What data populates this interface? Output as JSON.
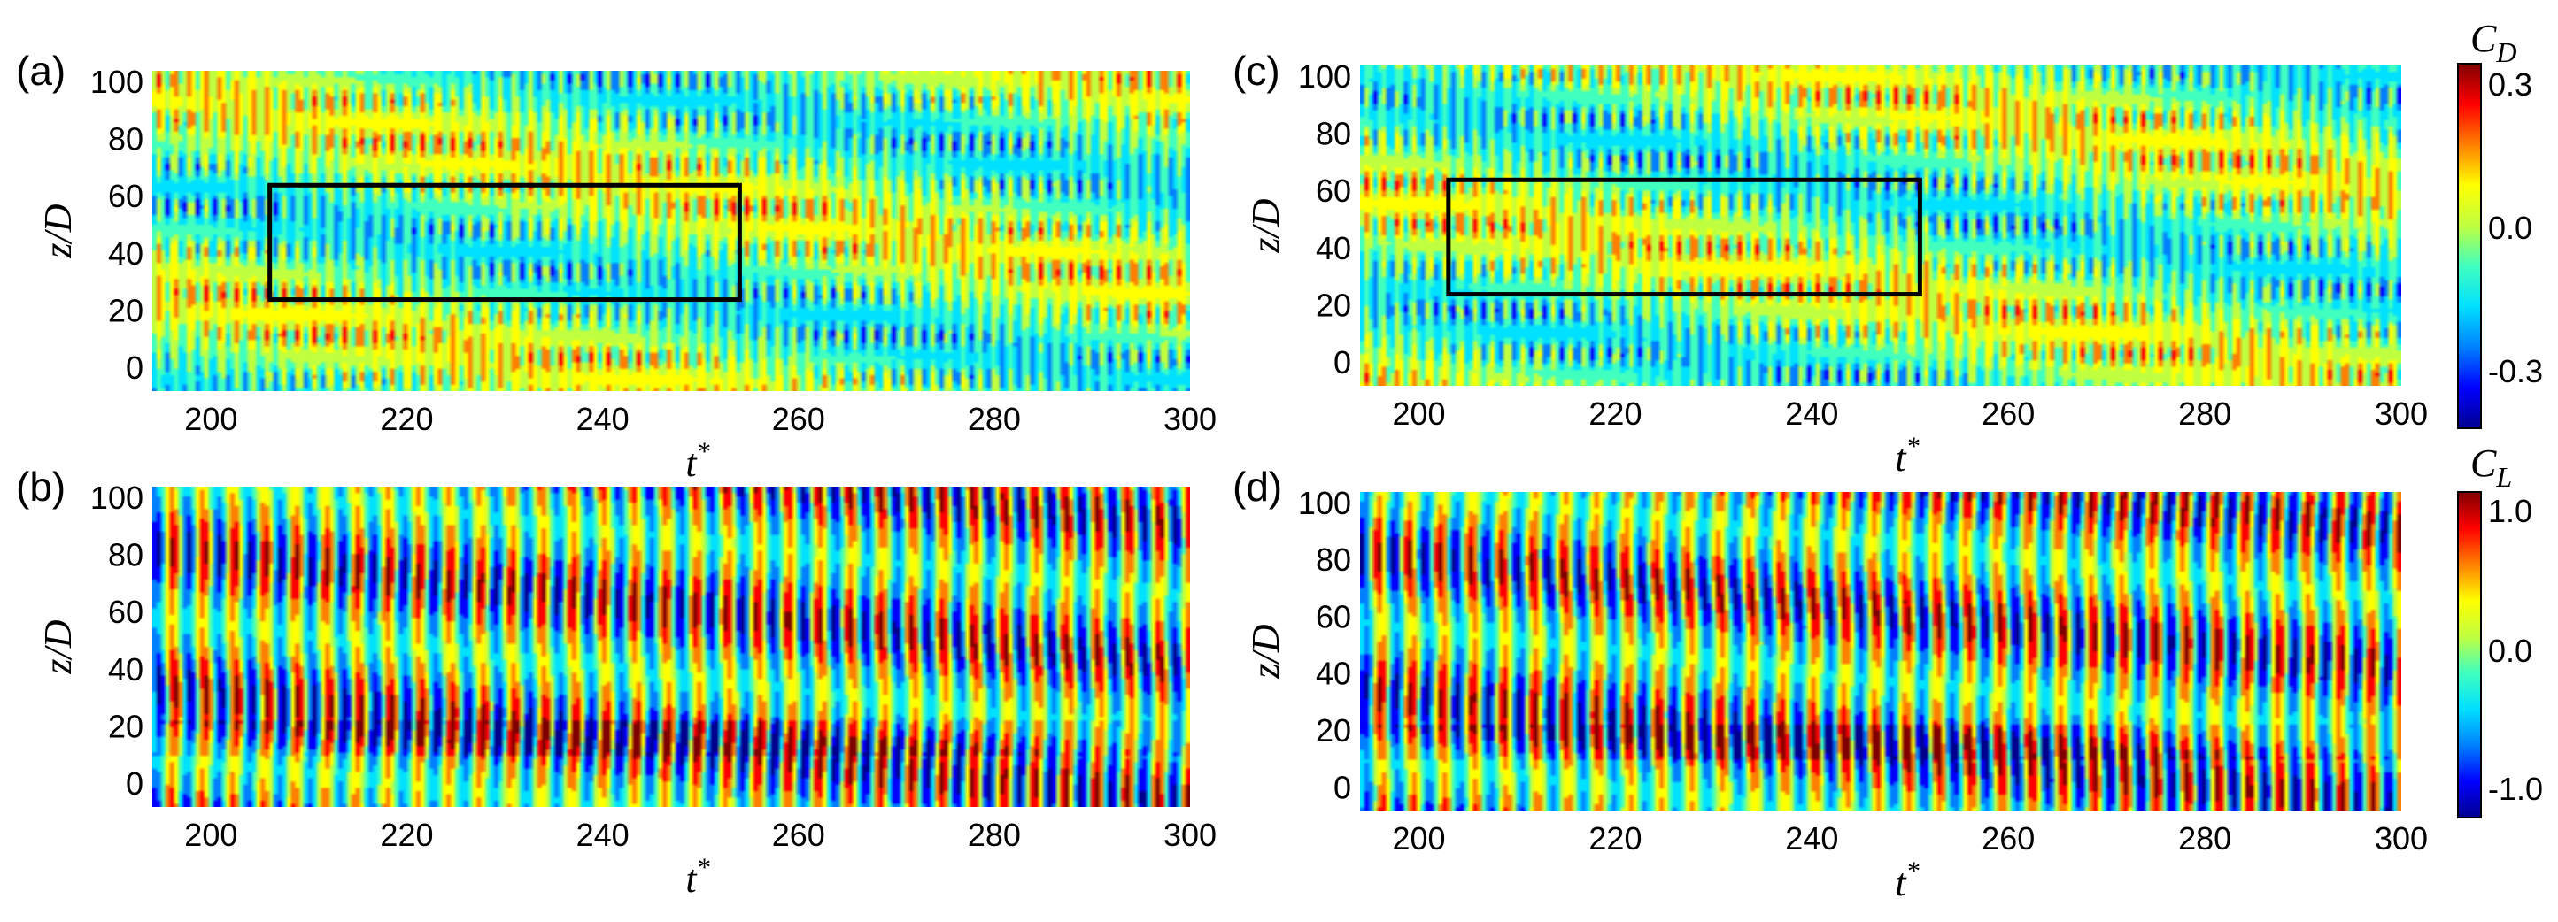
{
  "figure": {
    "colormap": [
      "#00008f",
      "#0000ff",
      "#0080ff",
      "#00e0ff",
      "#40ffbf",
      "#c0ff40",
      "#ffff00",
      "#ff8000",
      "#ff0000",
      "#800000"
    ]
  },
  "chart_data": [
    {
      "id": "a",
      "type": "heatmap",
      "panel_label": "(a)",
      "quantity": "C_D",
      "xlabel": "t*",
      "ylabel": "z/D",
      "xlim": [
        194,
        300
      ],
      "ylim": [
        -8,
        104
      ],
      "xticks": [
        "200",
        "220",
        "240",
        "260",
        "280",
        "300"
      ],
      "yticks": [
        "0",
        "20",
        "40",
        "60",
        "80",
        "100"
      ],
      "highlight_box": {
        "t": [
          206,
          254
        ],
        "z": [
          24,
          64
        ]
      },
      "clim": [
        -0.3,
        0.3
      ]
    },
    {
      "id": "b",
      "type": "heatmap",
      "panel_label": "(b)",
      "quantity": "C_L",
      "xlabel": "t*",
      "ylabel": "z/D",
      "xlim": [
        194,
        300
      ],
      "ylim": [
        -8,
        104
      ],
      "xticks": [
        "200",
        "220",
        "240",
        "260",
        "280",
        "300"
      ],
      "yticks": [
        "0",
        "20",
        "40",
        "60",
        "80",
        "100"
      ],
      "clim": [
        -1.0,
        1.0
      ]
    },
    {
      "id": "c",
      "type": "heatmap",
      "panel_label": "(c)",
      "quantity": "C_D",
      "xlabel": "t*",
      "ylabel": "z/D",
      "xlim": [
        194,
        300
      ],
      "ylim": [
        -8,
        104
      ],
      "xticks": [
        "200",
        "220",
        "240",
        "260",
        "280",
        "300"
      ],
      "yticks": [
        "0",
        "20",
        "40",
        "60",
        "80",
        "100"
      ],
      "highlight_box": {
        "t": [
          203,
          251
        ],
        "z": [
          24,
          64
        ]
      },
      "clim": [
        -0.3,
        0.3
      ]
    },
    {
      "id": "d",
      "type": "heatmap",
      "panel_label": "(d)",
      "quantity": "C_L",
      "xlabel": "t*",
      "ylabel": "z/D",
      "xlim": [
        194,
        300
      ],
      "ylim": [
        -8,
        104
      ],
      "xticks": [
        "200",
        "220",
        "240",
        "260",
        "280",
        "300"
      ],
      "yticks": [
        "0",
        "20",
        "40",
        "60",
        "80",
        "100"
      ],
      "clim": [
        -1.0,
        1.0
      ]
    }
  ],
  "colorbars": [
    {
      "id": "cd",
      "symbol": "C",
      "subscript": "D",
      "ticks": [
        "0.3",
        "0.0",
        "-0.3"
      ]
    },
    {
      "id": "cl",
      "symbol": "C",
      "subscript": "L",
      "ticks": [
        "1.0",
        "0.0",
        "-1.0"
      ]
    }
  ]
}
